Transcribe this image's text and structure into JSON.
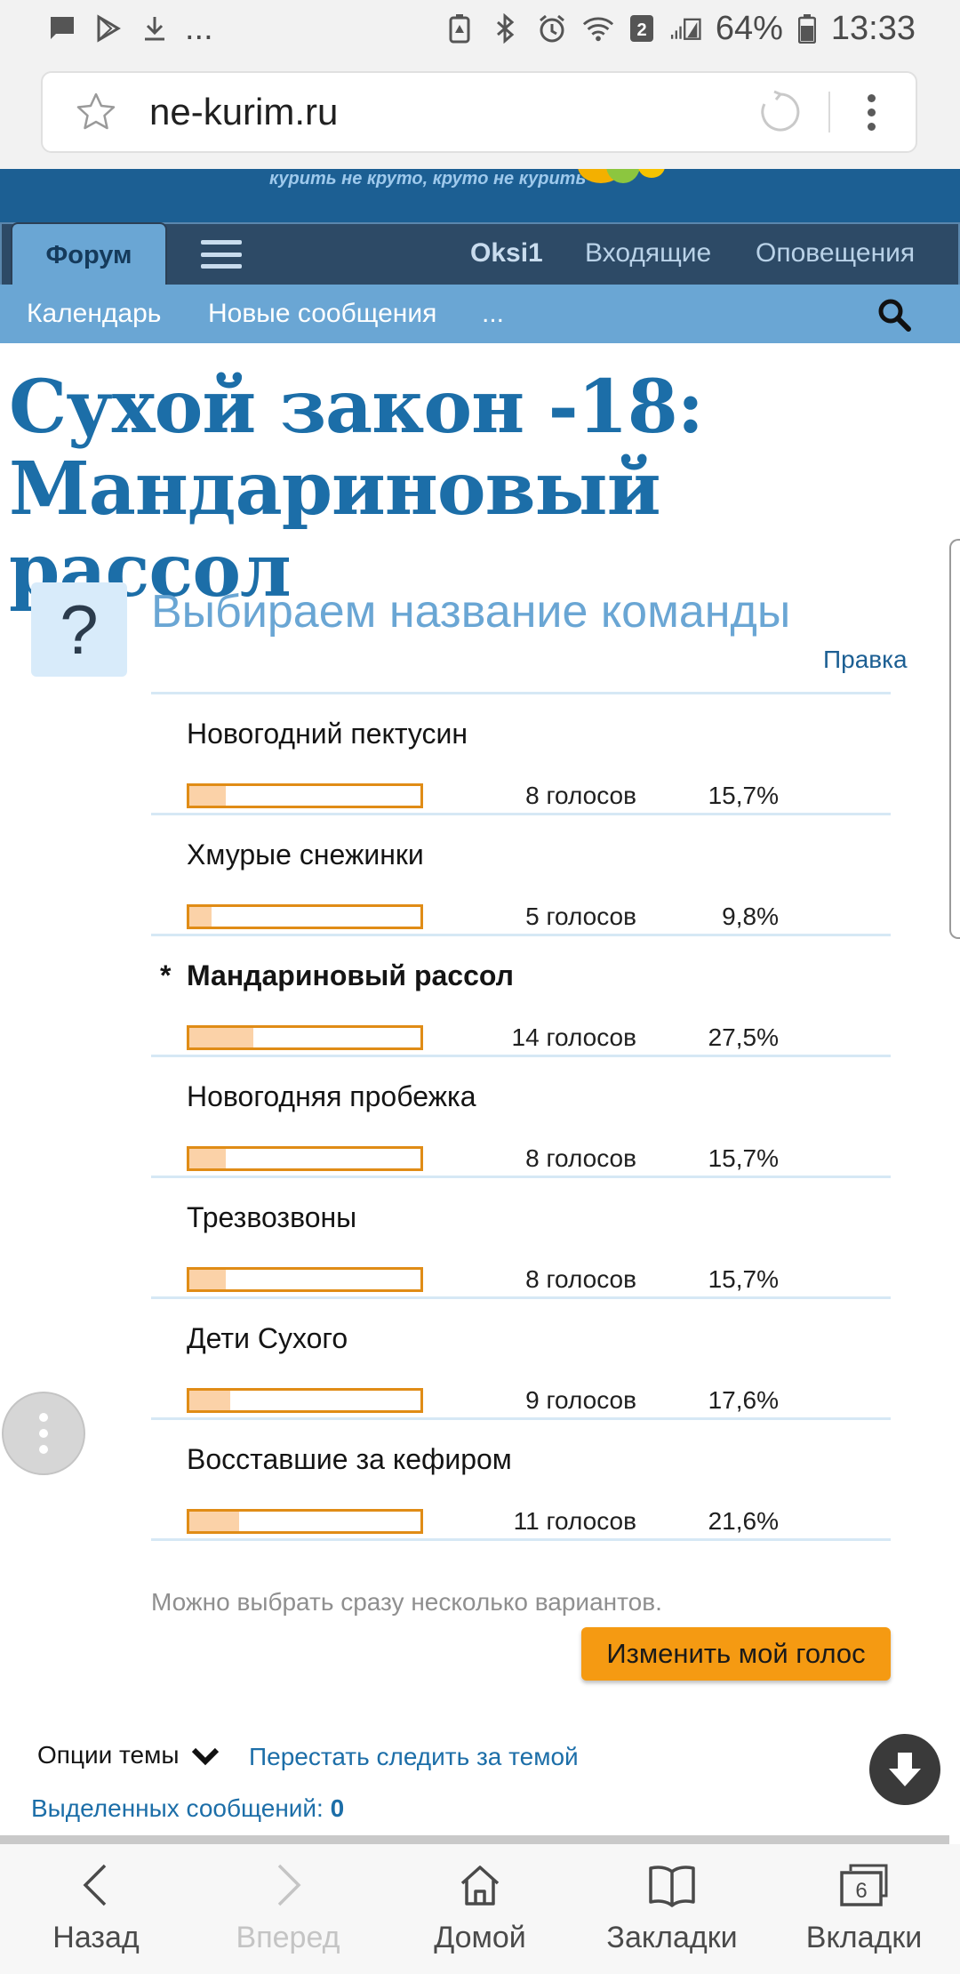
{
  "status_bar": {
    "left_icons": [
      "message-icon",
      "play-store-icon",
      "download-icon"
    ],
    "more": "...",
    "right_icons": [
      "battery-saver-icon",
      "bluetooth-icon",
      "alarm-icon",
      "wifi-icon",
      "sim-icon",
      "signal-icon",
      "battery-icon"
    ],
    "sim_number": "2",
    "battery": "64%",
    "time": "13:33"
  },
  "browser": {
    "url": "ne-kurim.ru"
  },
  "banner": {
    "slogan": "курить не круто, круто не курить"
  },
  "nav": {
    "active_tab": "Форум",
    "user": "Oksi1",
    "inbox": "Входящие",
    "alerts": "Оповещения"
  },
  "subnav": {
    "calendar": "Календарь",
    "new_posts": "Новые сообщения",
    "more": "..."
  },
  "thread": {
    "title_line1": "Сухой закон -18:",
    "title_line2": "Мандариновый рассол"
  },
  "poll": {
    "question_icon": "?",
    "title": "Выбираем название команды",
    "edit": "Правка",
    "options": [
      {
        "label": "Новогодний пектусин",
        "votes": "8 голосов",
        "percent": "15,7%",
        "share": 0.157,
        "own": false
      },
      {
        "label": "Хмурые снежинки",
        "votes": "5 голосов",
        "percent": "9,8%",
        "share": 0.098,
        "own": false
      },
      {
        "label": "Мандариновый рассол",
        "votes": "14 голосов",
        "percent": "27,5%",
        "share": 0.275,
        "own": true
      },
      {
        "label": "Новогодняя пробежка",
        "votes": "8 голосов",
        "percent": "15,7%",
        "share": 0.157,
        "own": false
      },
      {
        "label": "Трезвозвоны",
        "votes": "8 голосов",
        "percent": "15,7%",
        "share": 0.157,
        "own": false
      },
      {
        "label": "Дети Сухого",
        "votes": "9 голосов",
        "percent": "17,6%",
        "share": 0.176,
        "own": false
      },
      {
        "label": "Восставшие за кефиром",
        "votes": "11 голосов",
        "percent": "21,6%",
        "share": 0.216,
        "own": false
      }
    ],
    "own_marker": "*",
    "hint": "Можно выбрать сразу несколько вариантов.",
    "change_vote": "Изменить мой голос"
  },
  "thread_tools": {
    "options": "Опции темы",
    "unwatch": "Перестать следить за темой",
    "selected_label": "Выделенных сообщений:",
    "selected_count": "0"
  },
  "bottom_bar": {
    "back": "Назад",
    "forward": "Вперед",
    "home": "Домой",
    "bookmarks": "Закладки",
    "tabs": "Вкладки",
    "tabs_count": "6"
  },
  "colors": {
    "site_blue": "#1c5f93",
    "title_blue": "#1c6ea8",
    "bar_border": "#e08c16",
    "bar_fill": "#fbd2a8",
    "button": "#f59a12"
  }
}
